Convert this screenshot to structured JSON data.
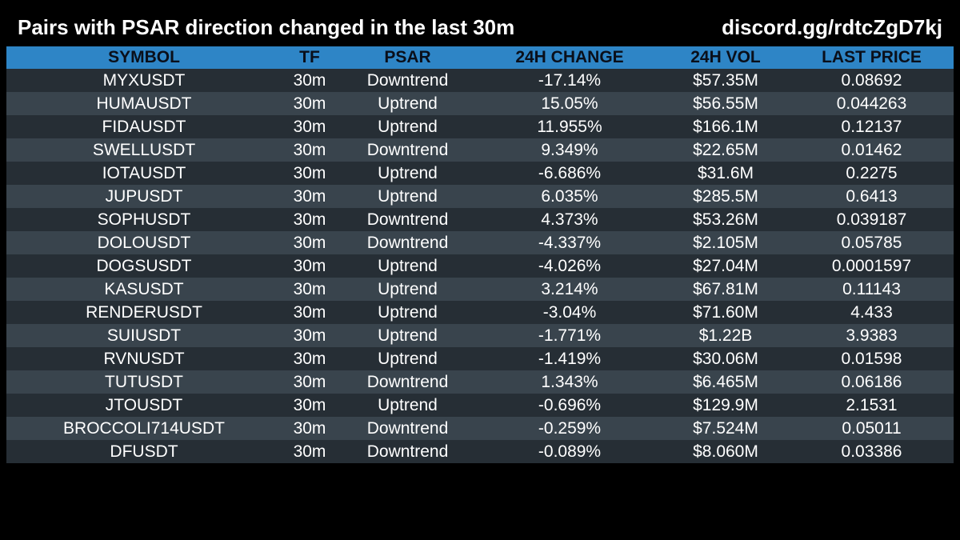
{
  "header": {
    "title": "Pairs with PSAR direction changed in the last 30m",
    "discord": "discord.gg/rdtcZgD7kj"
  },
  "table": {
    "columns": [
      "SYMBOL",
      "TF",
      "PSAR",
      "24H CHANGE",
      "24H VOL",
      "LAST PRICE"
    ],
    "rows": [
      {
        "symbol": "MYXUSDT",
        "tf": "30m",
        "psar": "Downtrend",
        "change": "-17.14%",
        "vol": "$57.35M",
        "price": "0.08692"
      },
      {
        "symbol": "HUMAUSDT",
        "tf": "30m",
        "psar": "Uptrend",
        "change": "15.05%",
        "vol": "$56.55M",
        "price": "0.044263"
      },
      {
        "symbol": "FIDAUSDT",
        "tf": "30m",
        "psar": "Uptrend",
        "change": "11.955%",
        "vol": "$166.1M",
        "price": "0.12137"
      },
      {
        "symbol": "SWELLUSDT",
        "tf": "30m",
        "psar": "Downtrend",
        "change": "9.349%",
        "vol": "$22.65M",
        "price": "0.01462"
      },
      {
        "symbol": "IOTAUSDT",
        "tf": "30m",
        "psar": "Uptrend",
        "change": "-6.686%",
        "vol": "$31.6M",
        "price": "0.2275"
      },
      {
        "symbol": "JUPUSDT",
        "tf": "30m",
        "psar": "Uptrend",
        "change": "6.035%",
        "vol": "$285.5M",
        "price": "0.6413"
      },
      {
        "symbol": "SOPHUSDT",
        "tf": "30m",
        "psar": "Downtrend",
        "change": "4.373%",
        "vol": "$53.26M",
        "price": "0.039187"
      },
      {
        "symbol": "DOLOUSDT",
        "tf": "30m",
        "psar": "Downtrend",
        "change": "-4.337%",
        "vol": "$2.105M",
        "price": "0.05785"
      },
      {
        "symbol": "DOGSUSDT",
        "tf": "30m",
        "psar": "Uptrend",
        "change": "-4.026%",
        "vol": "$27.04M",
        "price": "0.0001597"
      },
      {
        "symbol": "KASUSDT",
        "tf": "30m",
        "psar": "Uptrend",
        "change": "3.214%",
        "vol": "$67.81M",
        "price": "0.11143"
      },
      {
        "symbol": "RENDERUSDT",
        "tf": "30m",
        "psar": "Uptrend",
        "change": "-3.04%",
        "vol": "$71.60M",
        "price": "4.433"
      },
      {
        "symbol": "SUIUSDT",
        "tf": "30m",
        "psar": "Uptrend",
        "change": "-1.771%",
        "vol": "$1.22B",
        "price": "3.9383"
      },
      {
        "symbol": "RVNUSDT",
        "tf": "30m",
        "psar": "Uptrend",
        "change": "-1.419%",
        "vol": "$30.06M",
        "price": "0.01598"
      },
      {
        "symbol": "TUTUSDT",
        "tf": "30m",
        "psar": "Downtrend",
        "change": "1.343%",
        "vol": "$6.465M",
        "price": "0.06186"
      },
      {
        "symbol": "JTOUSDT",
        "tf": "30m",
        "psar": "Uptrend",
        "change": "-0.696%",
        "vol": "$129.9M",
        "price": "2.1531"
      },
      {
        "symbol": "BROCCOLI714USDT",
        "tf": "30m",
        "psar": "Downtrend",
        "change": "-0.259%",
        "vol": "$7.524M",
        "price": "0.05011"
      },
      {
        "symbol": "DFUSDT",
        "tf": "30m",
        "psar": "Downtrend",
        "change": "-0.089%",
        "vol": "$8.060M",
        "price": "0.03386"
      }
    ]
  },
  "colors": {
    "background": "#000000",
    "header_row": "#2e85c6",
    "row_dark": "#262e35",
    "row_light": "#39444d",
    "text": "#ffffff",
    "header_text": "#0a0f1a"
  }
}
